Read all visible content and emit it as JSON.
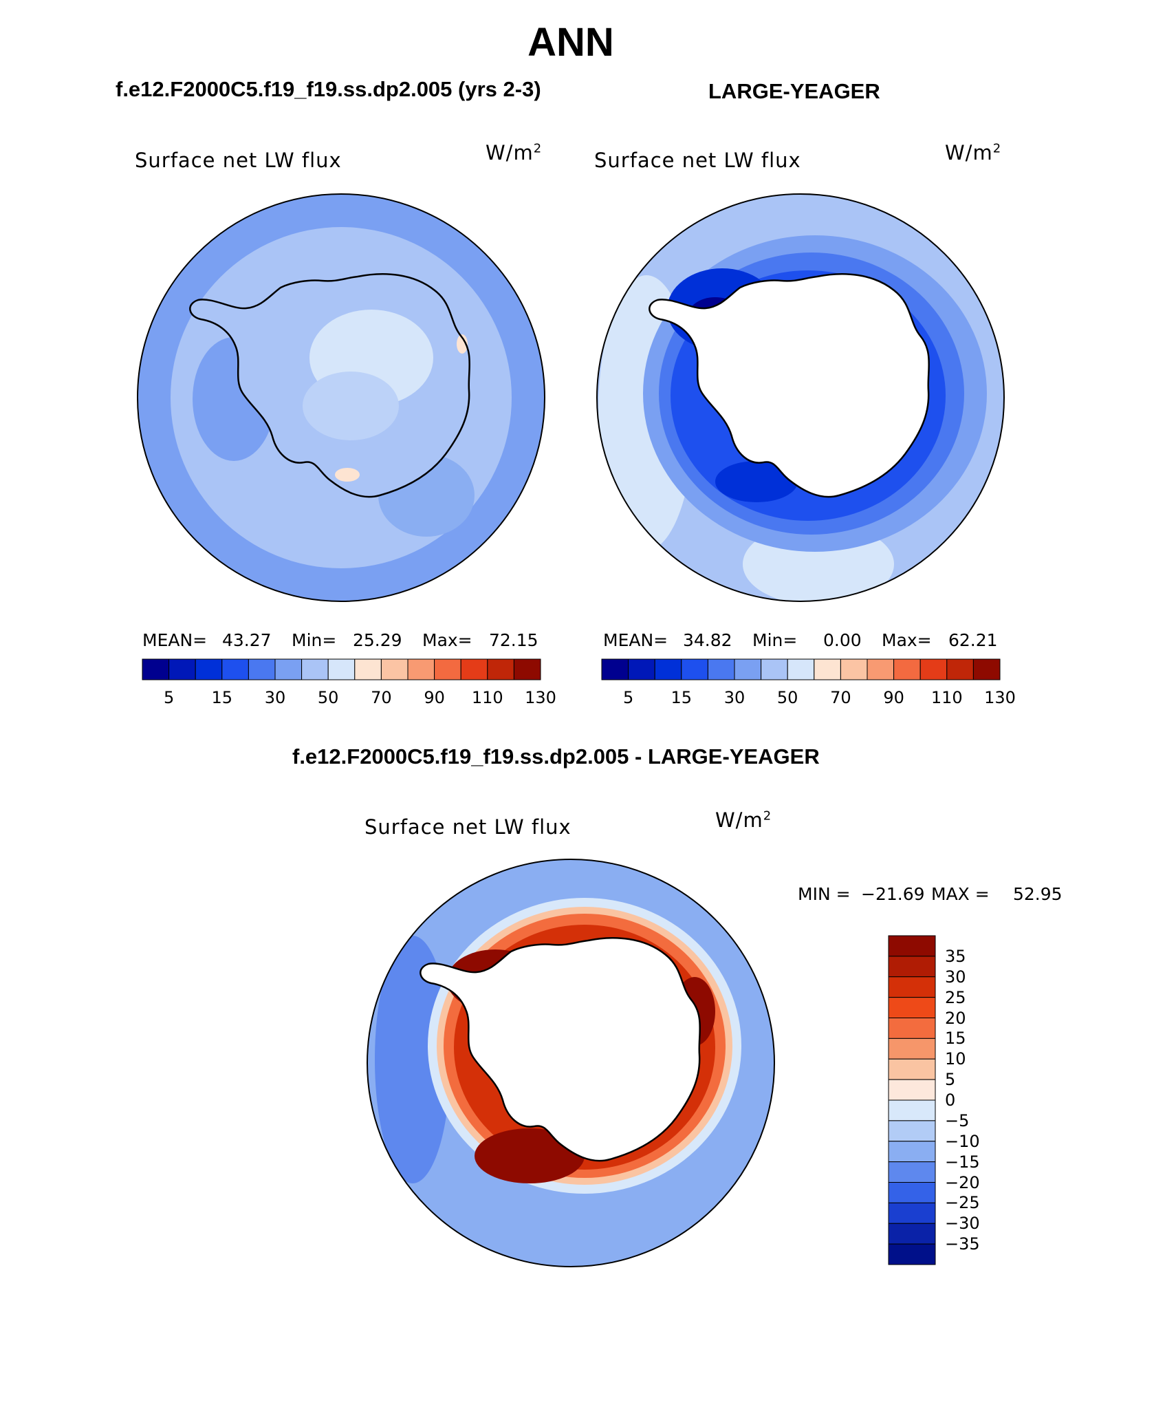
{
  "title": "ANN",
  "panels": [
    {
      "title": "f.e12.F2000C5.f19_f19.ss.dp2.005 (yrs 2-3)",
      "variable": "Surface net LW flux",
      "units_base": "W/m",
      "units_exp": "2",
      "stats": {
        "mean_label": "MEAN=",
        "mean": "43.27",
        "min_label": "Min=",
        "min": "25.29",
        "max_label": "Max=",
        "max": "72.15"
      },
      "colorbar_ticks": [
        "5",
        "15",
        "30",
        "50",
        "70",
        "90",
        "110",
        "130"
      ]
    },
    {
      "title": "LARGE-YEAGER",
      "variable": "Surface net LW flux",
      "units_base": "W/m",
      "units_exp": "2",
      "stats": {
        "mean_label": "MEAN=",
        "mean": "34.82",
        "min_label": "Min=",
        "min": "0.00",
        "max_label": "Max=",
        "max": "62.21"
      },
      "colorbar_ticks": [
        "5",
        "15",
        "30",
        "50",
        "70",
        "90",
        "110",
        "130"
      ]
    }
  ],
  "diff_panel": {
    "title": "f.e12.F2000C5.f19_f19.ss.dp2.005 - LARGE-YEAGER",
    "variable": "Surface net LW flux",
    "units_base": "W/m",
    "units_exp": "2",
    "min_label": "MIN =",
    "min": "−21.69",
    "max_label": "MAX =",
    "max": "52.95",
    "colorbar_ticks": [
      "35",
      "30",
      "25",
      "20",
      "15",
      "10",
      "5",
      "0",
      "−5",
      "−10",
      "−15",
      "−20",
      "−25",
      "−30",
      "−35"
    ]
  },
  "colors": {
    "abs_scale": [
      "#00008f",
      "#0018b8",
      "#0030d8",
      "#1e50ee",
      "#4a78f0",
      "#7aa0f2",
      "#aac4f6",
      "#d6e6fa",
      "#fde4d2",
      "#fbc4a4",
      "#f89a72",
      "#f36a40",
      "#e43c18",
      "#c02608",
      "#8e0a00"
    ],
    "diff_scale": [
      "#8e0a00",
      "#b01c04",
      "#d43008",
      "#ee4a18",
      "#f36c3e",
      "#f6966a",
      "#fac4a2",
      "#fde8dc",
      "#d8e8fa",
      "#b2ccf6",
      "#8aaef2",
      "#5e88ee",
      "#3462e8",
      "#1a3fd0",
      "#0a22a8",
      "#00108a"
    ]
  }
}
